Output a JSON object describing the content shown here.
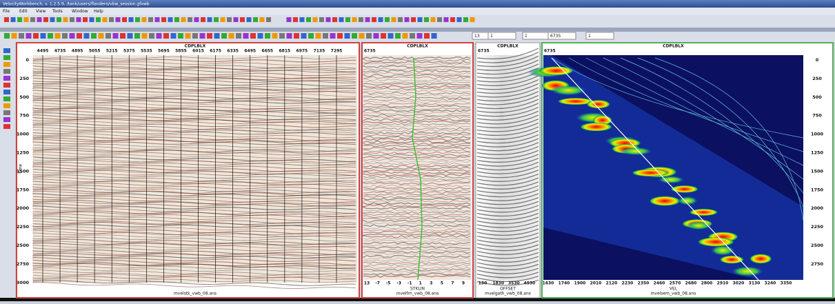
{
  "window": {
    "title": "VelocityWorkbench, v. 1.2.5.9, /tank/users/flandero/vbw_session.gfxwb",
    "menu": [
      "File",
      "Edit",
      "View",
      "Tools",
      "Window",
      "Help"
    ]
  },
  "toolbar": {
    "fields": [
      "13",
      "1",
      "1",
      "6735",
      "1"
    ]
  },
  "panels": [
    {
      "header": "CDPLBLX",
      "x_ticks": [
        4495,
        4735,
        4895,
        5055,
        5215,
        5375,
        5535,
        5695,
        5855,
        6015,
        6175,
        6335,
        6495,
        6655,
        6815,
        6975,
        7135,
        7295
      ],
      "y_label": "Time",
      "y_ticks": [
        0,
        250,
        500,
        750,
        1000,
        1250,
        1500,
        1750,
        2000,
        2250,
        2500,
        2750,
        3000
      ],
      "file": "mvelstk_vwb_08.ans"
    },
    {
      "header": "CDPLBLX",
      "cdp": "6735",
      "x_ticks": [
        13,
        -7,
        -5,
        -3,
        -1,
        1,
        3,
        5,
        7,
        9
      ],
      "x_label": "STKLIN",
      "file": "mvelfrn_vwb_08.ans"
    },
    {
      "header": "CDPLBLX",
      "cdp": "6735",
      "x_ticks": [
        130,
        1830,
        3530,
        4530
      ],
      "x_label": "OFFSET",
      "file": "mvelgath_vwb_08.ans"
    },
    {
      "header": "CDPLBLX",
      "cdp": "6735",
      "x_ticks": [
        1630,
        1740,
        1900,
        2010,
        2120,
        2230,
        2350,
        2460,
        2570,
        2680,
        2800,
        2910,
        3020,
        3130,
        3240,
        3350
      ],
      "x_label": "VEL",
      "y_ticks": [
        0,
        250,
        500,
        750,
        1000,
        1250,
        1500,
        1750,
        2000,
        2250,
        2500,
        2750
      ],
      "file": "mvelsem_vwb_08.ans"
    }
  ]
}
